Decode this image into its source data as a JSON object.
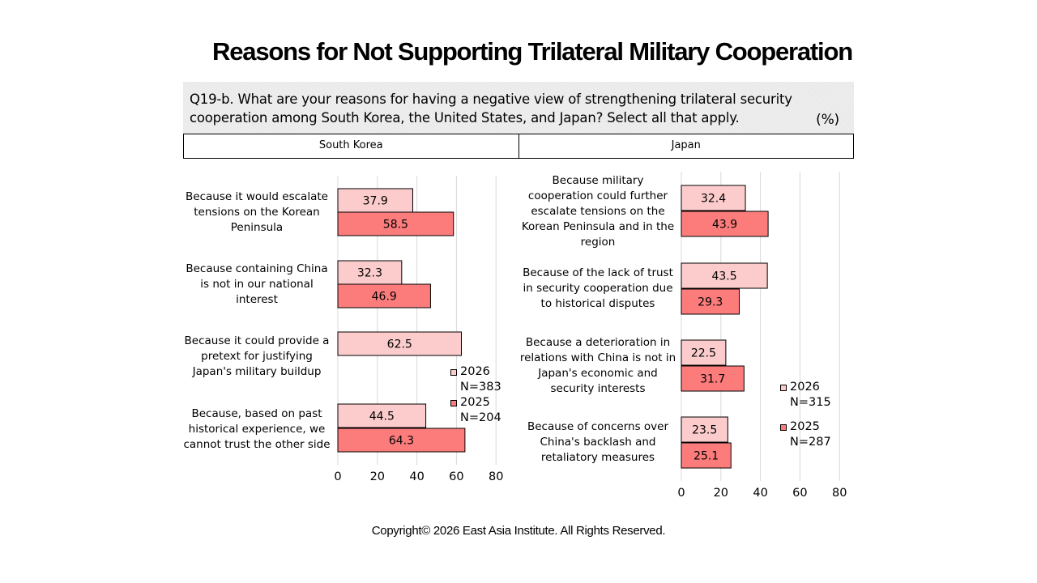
{
  "title": "Reasons for Not Supporting Trilateral Military Cooperation",
  "question": "Q19-b. What are your reasons for having a negative view of strengthening trilateral security cooperation among South Korea, the United States, and Japan? Select all that apply.",
  "unit": "(%)",
  "footer": "Copyright© 2026 East Asia Institute. All Rights Reserved.",
  "colors": {
    "y2026": "#fccccc",
    "y2025": "#fc7c7c",
    "grid": "#d9d9d9",
    "outline": "#000000"
  },
  "chart_data": [
    {
      "type": "bar",
      "orientation": "horizontal",
      "panel": "South Korea",
      "categories": [
        "Because it would escalate tensions on the Korean Peninsula",
        "Because containing China is not in our national interest",
        "Because it could provide a pretext for justifying Japan's military buildup",
        "Because, based on past historical experience, we cannot trust the other side"
      ],
      "series": [
        {
          "name": "2026",
          "n": "N=383",
          "values": [
            37.9,
            32.3,
            62.5,
            44.5
          ]
        },
        {
          "name": "2025",
          "n": "N=204",
          "values": [
            58.5,
            46.9,
            null,
            64.3
          ]
        }
      ],
      "xlim": [
        0,
        80
      ],
      "xticks": [
        0,
        20,
        40,
        60,
        80
      ],
      "grid": true,
      "legend": "right"
    },
    {
      "type": "bar",
      "orientation": "horizontal",
      "panel": "Japan",
      "categories": [
        "Because military cooperation could further escalate tensions on the Korean Peninsula and in the region",
        "Because of the lack of trust in security cooperation due to historical disputes",
        "Because a deterioration in relations with China is not in Japan's economic and security interests",
        "Because of concerns over China's backlash and retaliatory measures"
      ],
      "series": [
        {
          "name": "2026",
          "n": "N=315",
          "values": [
            32.4,
            43.5,
            22.5,
            23.5
          ]
        },
        {
          "name": "2025",
          "n": "N=287",
          "values": [
            43.9,
            29.3,
            31.7,
            25.1
          ]
        }
      ],
      "xlim": [
        0,
        80
      ],
      "xticks": [
        0,
        20,
        40,
        60,
        80
      ],
      "grid": true,
      "legend": "right"
    }
  ]
}
